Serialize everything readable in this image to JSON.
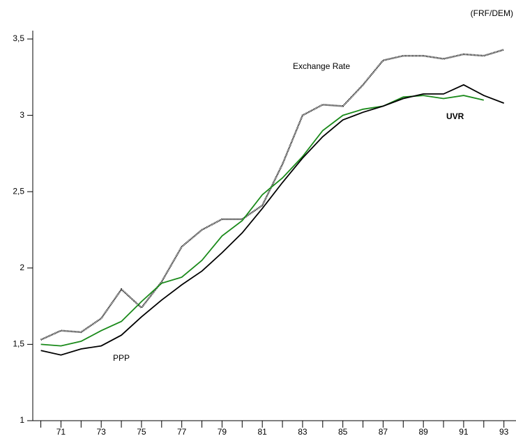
{
  "chart_data": {
    "type": "line",
    "unit_label": "(FRF/DEM)",
    "x": [
      70,
      71,
      72,
      73,
      74,
      75,
      76,
      77,
      78,
      79,
      80,
      81,
      82,
      83,
      84,
      85,
      86,
      87,
      88,
      89,
      90,
      91,
      92,
      93
    ],
    "series": [
      {
        "name": "Exchange Rate",
        "color": "#000000",
        "style": "dotted",
        "values": [
          1.53,
          1.59,
          1.58,
          1.67,
          1.86,
          1.74,
          1.91,
          2.14,
          2.25,
          2.32,
          2.32,
          2.41,
          2.68,
          3.0,
          3.07,
          3.06,
          3.2,
          3.36,
          3.39,
          3.39,
          3.37,
          3.4,
          3.39,
          3.43
        ]
      },
      {
        "name": "UVR",
        "color": "#1a8a1a",
        "style": "solid",
        "values": [
          1.5,
          1.49,
          1.52,
          1.59,
          1.65,
          1.78,
          1.9,
          1.94,
          2.05,
          2.21,
          2.31,
          2.48,
          2.59,
          2.73,
          2.9,
          3.0,
          3.04,
          3.06,
          3.12,
          3.13,
          3.11,
          3.13,
          3.1,
          null
        ]
      },
      {
        "name": "PPP",
        "color": "#000000",
        "style": "solid",
        "values": [
          1.46,
          1.43,
          1.47,
          1.49,
          1.56,
          1.68,
          1.79,
          1.89,
          1.98,
          2.1,
          2.23,
          2.39,
          2.56,
          2.72,
          2.86,
          2.97,
          3.02,
          3.06,
          3.11,
          3.14,
          3.14,
          3.2,
          3.13,
          3.08
        ]
      }
    ],
    "xlim": [
      69.6,
      93.6
    ],
    "xticks": [
      71,
      73,
      75,
      77,
      79,
      81,
      83,
      85,
      87,
      89,
      91,
      93
    ],
    "xminorticks": [
      70,
      72,
      74,
      76,
      78,
      80,
      82,
      84,
      86,
      88,
      90,
      92
    ],
    "ylim": [
      1,
      3.5
    ],
    "yticks": [
      1,
      {
        "value": 1.5,
        "label": "1,5"
      },
      2,
      {
        "value": 2.5,
        "label": "2,5"
      },
      3,
      {
        "value": 3.5,
        "label": "3,5"
      }
    ]
  }
}
